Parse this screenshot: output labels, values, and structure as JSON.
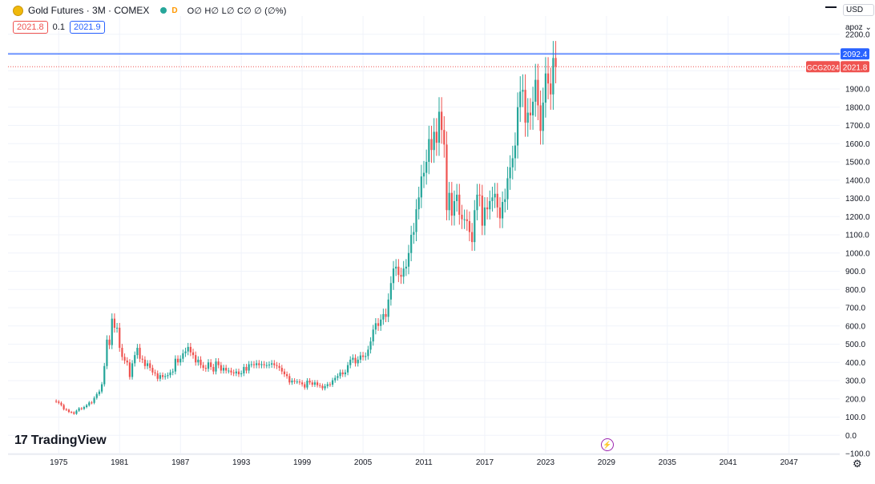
{
  "header": {
    "title": "Gold Futures · 3M · COMEX",
    "status_badge": "D",
    "ohlc_text": "O∅ H∅ L∅ C∅ ∅ (∅%)",
    "bid": "2021.8",
    "spread": "0.1",
    "ask": "2021.9"
  },
  "price_scale": {
    "currency": "USD",
    "unit": "apoz",
    "settings_icon": "gear-icon"
  },
  "watermark": {
    "logo_mark": "17",
    "name": "TradingView"
  },
  "colors": {
    "up": "#26a69a",
    "down": "#ef5350",
    "ask_line": "#2962ff",
    "bid_line": "#ef5350",
    "grid": "#f0f3fa"
  },
  "chart_data": {
    "type": "candlestick",
    "symbol_label": "GCG2024",
    "last_price": 2021.8,
    "high_line": 2092.4,
    "ylim": [
      -100,
      2300
    ],
    "y_ticks": [
      -100,
      0,
      100,
      200,
      300,
      400,
      500,
      600,
      700,
      800,
      900,
      1000,
      1100,
      1200,
      1300,
      1400,
      1500,
      1600,
      1700,
      1800,
      1900,
      2000,
      2100,
      2200
    ],
    "y_tick_labels": [
      "−100.0",
      "0.0",
      "100.0",
      "200.0",
      "300.0",
      "400.0",
      "500.0",
      "600.0",
      "700.0",
      "800.0",
      "900.0",
      "1000.0",
      "1100.0",
      "1200.0",
      "1300.0",
      "1400.0",
      "1500.0",
      "1600.0",
      "1700.0",
      "1800.0",
      "1900.0",
      "",
      "",
      "2200.0"
    ],
    "x_ticks": [
      1975,
      1981,
      1987,
      1993,
      1999,
      2005,
      2011,
      2017,
      2023,
      2029,
      2035,
      2041,
      2047
    ],
    "xlim": [
      1970.0,
      2052.0
    ],
    "grid": true,
    "series": [
      {
        "t": 1974.75,
        "c": 185
      },
      {
        "t": 1975.0,
        "c": 178
      },
      {
        "t": 1975.25,
        "c": 166
      },
      {
        "t": 1975.5,
        "c": 143
      },
      {
        "t": 1975.75,
        "c": 140
      },
      {
        "t": 1976.0,
        "c": 128
      },
      {
        "t": 1976.25,
        "c": 126
      },
      {
        "t": 1976.5,
        "c": 118
      },
      {
        "t": 1976.75,
        "c": 135
      },
      {
        "t": 1977.0,
        "c": 148
      },
      {
        "t": 1977.25,
        "c": 145
      },
      {
        "t": 1977.5,
        "c": 155
      },
      {
        "t": 1977.75,
        "c": 165
      },
      {
        "t": 1978.0,
        "c": 180
      },
      {
        "t": 1978.25,
        "c": 178
      },
      {
        "t": 1978.5,
        "c": 205
      },
      {
        "t": 1978.75,
        "c": 226
      },
      {
        "t": 1979.0,
        "c": 240
      },
      {
        "t": 1979.25,
        "c": 280
      },
      {
        "t": 1979.5,
        "c": 380
      },
      {
        "t": 1979.75,
        "c": 525
      },
      {
        "t": 1980.0,
        "c": 495
      },
      {
        "t": 1980.25,
        "c": 640
      },
      {
        "t": 1980.5,
        "c": 590
      },
      {
        "t": 1980.75,
        "c": 590
      },
      {
        "t": 1981.0,
        "c": 480
      },
      {
        "t": 1981.25,
        "c": 430
      },
      {
        "t": 1981.5,
        "c": 410
      },
      {
        "t": 1981.75,
        "c": 400
      },
      {
        "t": 1982.0,
        "c": 320
      },
      {
        "t": 1982.25,
        "c": 395
      },
      {
        "t": 1982.5,
        "c": 440
      },
      {
        "t": 1982.75,
        "c": 480
      },
      {
        "t": 1983.0,
        "c": 420
      },
      {
        "t": 1983.25,
        "c": 415
      },
      {
        "t": 1983.5,
        "c": 380
      },
      {
        "t": 1983.75,
        "c": 395
      },
      {
        "t": 1984.0,
        "c": 370
      },
      {
        "t": 1984.25,
        "c": 345
      },
      {
        "t": 1984.5,
        "c": 340
      },
      {
        "t": 1984.75,
        "c": 310
      },
      {
        "t": 1985.0,
        "c": 330
      },
      {
        "t": 1985.25,
        "c": 320
      },
      {
        "t": 1985.5,
        "c": 325
      },
      {
        "t": 1985.75,
        "c": 330
      },
      {
        "t": 1986.0,
        "c": 345
      },
      {
        "t": 1986.25,
        "c": 350
      },
      {
        "t": 1986.5,
        "c": 420
      },
      {
        "t": 1986.75,
        "c": 400
      },
      {
        "t": 1987.0,
        "c": 420
      },
      {
        "t": 1987.25,
        "c": 450
      },
      {
        "t": 1987.5,
        "c": 460
      },
      {
        "t": 1987.75,
        "c": 485
      },
      {
        "t": 1988.0,
        "c": 455
      },
      {
        "t": 1988.25,
        "c": 440
      },
      {
        "t": 1988.5,
        "c": 400
      },
      {
        "t": 1988.75,
        "c": 415
      },
      {
        "t": 1989.0,
        "c": 385
      },
      {
        "t": 1989.25,
        "c": 370
      },
      {
        "t": 1989.5,
        "c": 365
      },
      {
        "t": 1989.75,
        "c": 400
      },
      {
        "t": 1990.0,
        "c": 375
      },
      {
        "t": 1990.25,
        "c": 350
      },
      {
        "t": 1990.5,
        "c": 405
      },
      {
        "t": 1990.75,
        "c": 385
      },
      {
        "t": 1991.0,
        "c": 355
      },
      {
        "t": 1991.25,
        "c": 370
      },
      {
        "t": 1991.5,
        "c": 355
      },
      {
        "t": 1991.75,
        "c": 355
      },
      {
        "t": 1992.0,
        "c": 345
      },
      {
        "t": 1992.25,
        "c": 340
      },
      {
        "t": 1992.5,
        "c": 350
      },
      {
        "t": 1992.75,
        "c": 335
      },
      {
        "t": 1993.0,
        "c": 340
      },
      {
        "t": 1993.25,
        "c": 375
      },
      {
        "t": 1993.5,
        "c": 355
      },
      {
        "t": 1993.75,
        "c": 390
      },
      {
        "t": 1994.0,
        "c": 390
      },
      {
        "t": 1994.25,
        "c": 385
      },
      {
        "t": 1994.5,
        "c": 395
      },
      {
        "t": 1994.75,
        "c": 385
      },
      {
        "t": 1995.0,
        "c": 390
      },
      {
        "t": 1995.25,
        "c": 385
      },
      {
        "t": 1995.5,
        "c": 385
      },
      {
        "t": 1995.75,
        "c": 388
      },
      {
        "t": 1996.0,
        "c": 395
      },
      {
        "t": 1996.25,
        "c": 385
      },
      {
        "t": 1996.5,
        "c": 380
      },
      {
        "t": 1996.75,
        "c": 370
      },
      {
        "t": 1997.0,
        "c": 350
      },
      {
        "t": 1997.25,
        "c": 335
      },
      {
        "t": 1997.5,
        "c": 325
      },
      {
        "t": 1997.75,
        "c": 290
      },
      {
        "t": 1998.0,
        "c": 300
      },
      {
        "t": 1998.25,
        "c": 295
      },
      {
        "t": 1998.5,
        "c": 295
      },
      {
        "t": 1998.75,
        "c": 290
      },
      {
        "t": 1999.0,
        "c": 280
      },
      {
        "t": 1999.25,
        "c": 262
      },
      {
        "t": 1999.5,
        "c": 300
      },
      {
        "t": 1999.75,
        "c": 290
      },
      {
        "t": 2000.0,
        "c": 278
      },
      {
        "t": 2000.25,
        "c": 290
      },
      {
        "t": 2000.5,
        "c": 275
      },
      {
        "t": 2000.75,
        "c": 272
      },
      {
        "t": 2001.0,
        "c": 258
      },
      {
        "t": 2001.25,
        "c": 270
      },
      {
        "t": 2001.5,
        "c": 280
      },
      {
        "t": 2001.75,
        "c": 278
      },
      {
        "t": 2002.0,
        "c": 302
      },
      {
        "t": 2002.25,
        "c": 315
      },
      {
        "t": 2002.5,
        "c": 325
      },
      {
        "t": 2002.75,
        "c": 345
      },
      {
        "t": 2003.0,
        "c": 335
      },
      {
        "t": 2003.25,
        "c": 345
      },
      {
        "t": 2003.5,
        "c": 385
      },
      {
        "t": 2003.75,
        "c": 415
      },
      {
        "t": 2004.0,
        "c": 425
      },
      {
        "t": 2004.25,
        "c": 395
      },
      {
        "t": 2004.5,
        "c": 415
      },
      {
        "t": 2004.75,
        "c": 438
      },
      {
        "t": 2005.0,
        "c": 430
      },
      {
        "t": 2005.25,
        "c": 435
      },
      {
        "t": 2005.5,
        "c": 470
      },
      {
        "t": 2005.75,
        "c": 515
      },
      {
        "t": 2006.0,
        "c": 580
      },
      {
        "t": 2006.25,
        "c": 615
      },
      {
        "t": 2006.5,
        "c": 600
      },
      {
        "t": 2006.75,
        "c": 635
      },
      {
        "t": 2007.0,
        "c": 665
      },
      {
        "t": 2007.25,
        "c": 650
      },
      {
        "t": 2007.5,
        "c": 745
      },
      {
        "t": 2007.75,
        "c": 835
      },
      {
        "t": 2008.0,
        "c": 915
      },
      {
        "t": 2008.25,
        "c": 925
      },
      {
        "t": 2008.5,
        "c": 880
      },
      {
        "t": 2008.75,
        "c": 870
      },
      {
        "t": 2009.0,
        "c": 915
      },
      {
        "t": 2009.25,
        "c": 925
      },
      {
        "t": 2009.5,
        "c": 1000
      },
      {
        "t": 2009.75,
        "c": 1100
      },
      {
        "t": 2010.0,
        "c": 1115
      },
      {
        "t": 2010.25,
        "c": 1240
      },
      {
        "t": 2010.5,
        "c": 1305
      },
      {
        "t": 2010.75,
        "c": 1420
      },
      {
        "t": 2011.0,
        "c": 1440
      },
      {
        "t": 2011.25,
        "c": 1500
      },
      {
        "t": 2011.5,
        "c": 1625
      },
      {
        "t": 2011.75,
        "c": 1565
      },
      {
        "t": 2012.0,
        "c": 1665
      },
      {
        "t": 2012.25,
        "c": 1605
      },
      {
        "t": 2012.5,
        "c": 1775
      },
      {
        "t": 2012.75,
        "c": 1675
      },
      {
        "t": 2013.0,
        "c": 1595
      },
      {
        "t": 2013.25,
        "c": 1235
      },
      {
        "t": 2013.5,
        "c": 1330
      },
      {
        "t": 2013.75,
        "c": 1205
      },
      {
        "t": 2014.0,
        "c": 1285
      },
      {
        "t": 2014.25,
        "c": 1320
      },
      {
        "t": 2014.5,
        "c": 1210
      },
      {
        "t": 2014.75,
        "c": 1185
      },
      {
        "t": 2015.0,
        "c": 1185
      },
      {
        "t": 2015.25,
        "c": 1175
      },
      {
        "t": 2015.5,
        "c": 1115
      },
      {
        "t": 2015.75,
        "c": 1060
      },
      {
        "t": 2016.0,
        "c": 1235
      },
      {
        "t": 2016.25,
        "c": 1320
      },
      {
        "t": 2016.5,
        "c": 1315
      },
      {
        "t": 2016.75,
        "c": 1150
      },
      {
        "t": 2017.0,
        "c": 1250
      },
      {
        "t": 2017.25,
        "c": 1240
      },
      {
        "t": 2017.5,
        "c": 1285
      },
      {
        "t": 2017.75,
        "c": 1305
      },
      {
        "t": 2018.0,
        "c": 1325
      },
      {
        "t": 2018.25,
        "c": 1250
      },
      {
        "t": 2018.5,
        "c": 1190
      },
      {
        "t": 2018.75,
        "c": 1280
      },
      {
        "t": 2019.0,
        "c": 1295
      },
      {
        "t": 2019.25,
        "c": 1410
      },
      {
        "t": 2019.5,
        "c": 1470
      },
      {
        "t": 2019.75,
        "c": 1520
      },
      {
        "t": 2020.0,
        "c": 1590
      },
      {
        "t": 2020.25,
        "c": 1800
      },
      {
        "t": 2020.5,
        "c": 1885
      },
      {
        "t": 2020.75,
        "c": 1895
      },
      {
        "t": 2021.0,
        "c": 1715
      },
      {
        "t": 2021.25,
        "c": 1770
      },
      {
        "t": 2021.5,
        "c": 1755
      },
      {
        "t": 2021.75,
        "c": 1830
      },
      {
        "t": 2022.0,
        "c": 1950
      },
      {
        "t": 2022.25,
        "c": 1810
      },
      {
        "t": 2022.5,
        "c": 1670
      },
      {
        "t": 2022.75,
        "c": 1825
      },
      {
        "t": 2023.0,
        "c": 1985
      },
      {
        "t": 2023.25,
        "c": 1930
      },
      {
        "t": 2023.5,
        "c": 1870
      },
      {
        "t": 2023.75,
        "c": 2070
      },
      {
        "t": 2024.0,
        "c": 2021.8
      }
    ]
  }
}
